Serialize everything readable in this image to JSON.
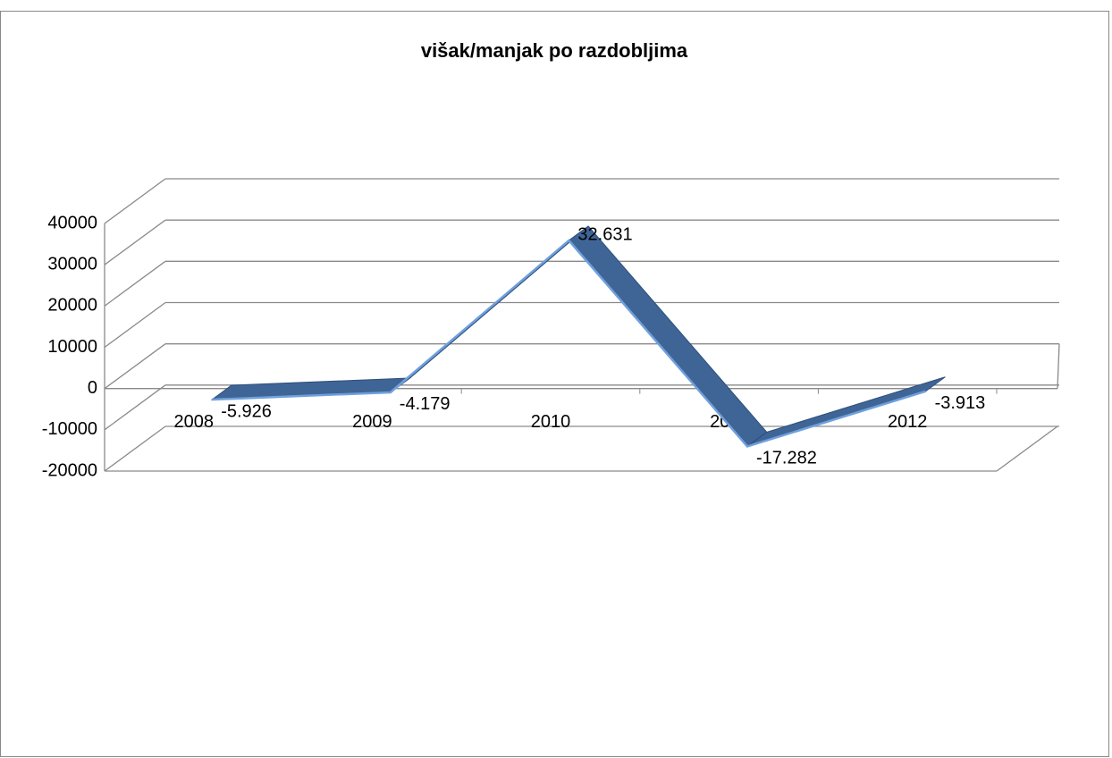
{
  "chart_data": {
    "type": "line3d",
    "title": "višak/manjak po razdobljima",
    "categories": [
      "2008",
      "2009",
      "2010",
      "2011",
      "2012"
    ],
    "series": [
      {
        "color": "#3f6596",
        "values": [
          -5926,
          -4179,
          32631,
          -17282,
          -3913
        ],
        "value_labels": [
          "-5.926",
          "-4.179",
          "32.631",
          "-17.282",
          "-3.913"
        ]
      }
    ],
    "ylim": [
      -20000,
      40000
    ],
    "yticks": [
      -20000,
      -10000,
      0,
      10000,
      20000,
      30000,
      40000
    ],
    "grid": true
  }
}
